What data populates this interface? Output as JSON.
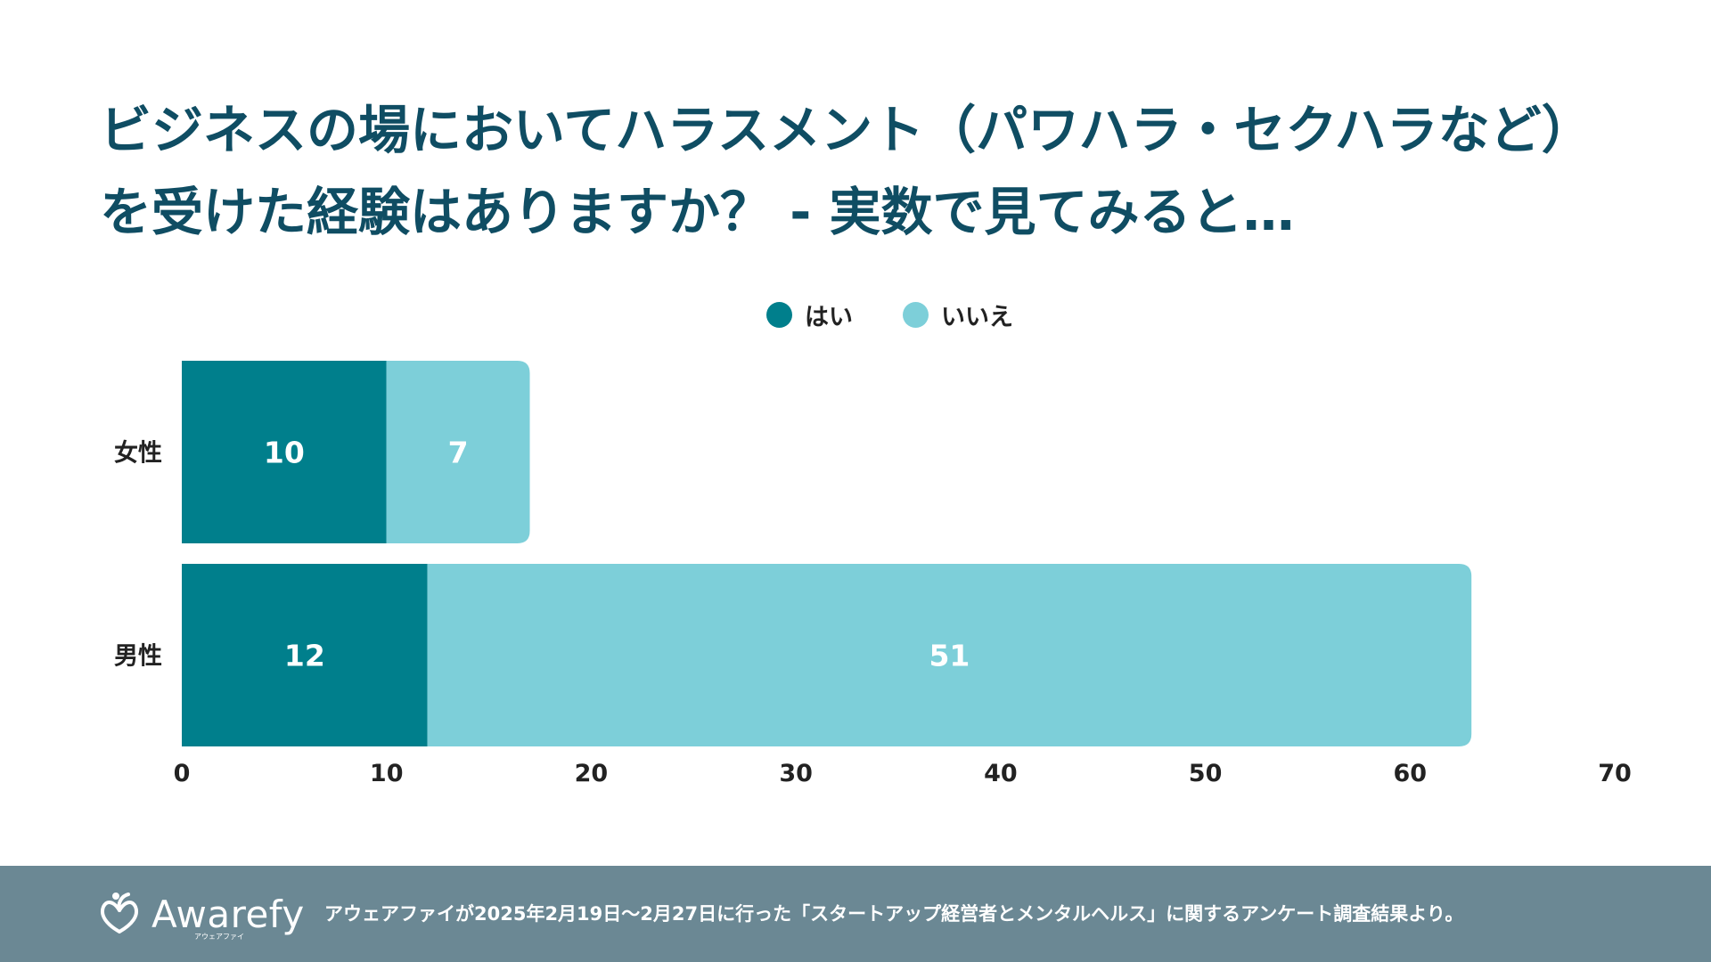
{
  "title_lines": [
    "ビジネスの場においてハラスメント（パワハラ・セクハラなど）",
    "を受けた経験はありますか？ - 実数で見てみると…"
  ],
  "legend": [
    {
      "label": "はい",
      "color": "#007f8c"
    },
    {
      "label": "いいえ",
      "color": "#7dcfd9"
    }
  ],
  "chart_data": {
    "type": "bar",
    "orientation": "horizontal",
    "stacked": true,
    "categories": [
      "女性",
      "男性"
    ],
    "series": [
      {
        "name": "はい",
        "values": [
          10,
          12
        ],
        "color": "#007f8c"
      },
      {
        "name": "いいえ",
        "values": [
          7,
          51
        ],
        "color": "#7dcfd9"
      }
    ],
    "xlim": [
      0,
      70
    ],
    "xticks": [
      "0",
      "10",
      "20",
      "30",
      "40",
      "50",
      "60",
      "70"
    ],
    "grid": false,
    "legend_position": "top-center"
  },
  "footer": {
    "logo_text": "Awarefy",
    "logo_sub": "アウェアファイ",
    "note": "アウェアファイが2025年2月19日〜2月27日に行った「スタートアップ経営者とメンタルヘルス」に関するアンケート調査結果より。",
    "background": "#6b8894"
  }
}
